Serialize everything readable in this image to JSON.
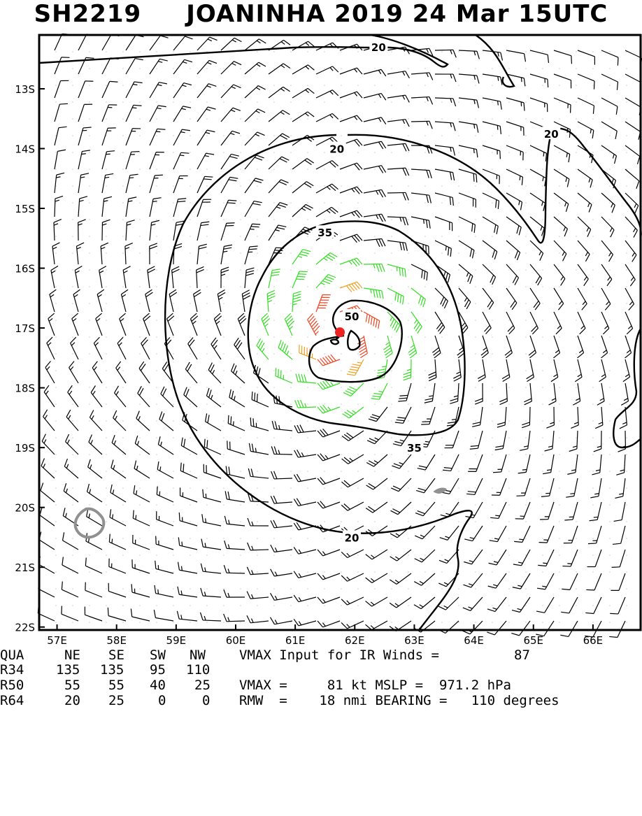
{
  "header": {
    "storm_id": "SH2219",
    "storm_name_date": "JOANINHA 2019 24 Mar 15UTC"
  },
  "colors": {
    "below_34kt": "#000000",
    "34_to_50kt": "#33dd22",
    "50_to_64kt": "#f0a020",
    "64_plus_kt": "#ee4422",
    "center_marker": "#ee2222",
    "land_outline": "#909090"
  },
  "chart_data": {
    "type": "wind-barb-map",
    "x_ticks": [
      "57E",
      "58E",
      "59E",
      "60E",
      "61E",
      "62E",
      "63E",
      "64E",
      "65E",
      "66E"
    ],
    "y_ticks": [
      "13S",
      "14S",
      "15S",
      "16S",
      "17S",
      "18S",
      "19S",
      "20S",
      "21S",
      "22S"
    ],
    "xlim": [
      56.7,
      66.8
    ],
    "ylim": [
      -22.05,
      -12.1
    ],
    "center": {
      "lon": 61.75,
      "lat": -17.07
    },
    "rmw_nmi": 18,
    "contours": [
      {
        "level": "20",
        "label_lon": 61.7,
        "label_lat": -14.0
      },
      {
        "level": "20",
        "label_lon": 61.95,
        "label_lat": -20.5
      },
      {
        "level": "20",
        "label_lon": 65.3,
        "label_lat": -13.75
      },
      {
        "level": "20",
        "label_lon": 62.4,
        "label_lat": -12.3
      },
      {
        "level": "35",
        "label_lon": 61.5,
        "label_lat": -15.4
      },
      {
        "level": "35",
        "label_lon": 63.0,
        "label_lat": -19.0
      },
      {
        "level": "50",
        "label_lon": 61.95,
        "label_lat": -16.8
      }
    ]
  },
  "stats": {
    "header_row": {
      "label": "QUA",
      "ne": "NE",
      "se": "SE",
      "sw": "SW",
      "nw": "NW",
      "note": "VMAX Input for IR Winds =",
      "note_value": "87"
    },
    "r34": {
      "label": "R34",
      "ne": "135",
      "se": "135",
      "sw": "95",
      "nw": "110"
    },
    "r50": {
      "label": "R50",
      "ne": "55",
      "se": "55",
      "sw": "40",
      "nw": "25",
      "note": "VMAX =     81 kt MSLP =  971.2 hPa"
    },
    "r64": {
      "label": "R64",
      "ne": "20",
      "se": "25",
      "sw": "0",
      "nw": "0",
      "note": "RMW  =    18 nmi BEARING =   110 degrees"
    }
  }
}
